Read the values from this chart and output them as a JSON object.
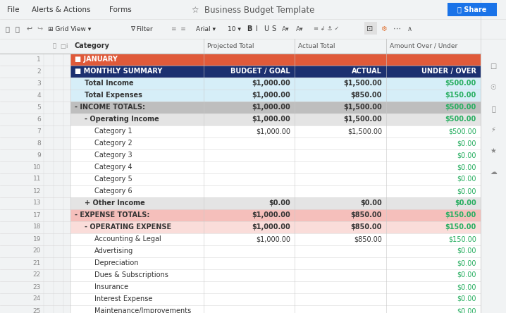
{
  "title": "Business Budget Template",
  "menu_items": [
    "File",
    "Alerts & Actions",
    "Forms"
  ],
  "rows": [
    {
      "row": 1,
      "indent": 0,
      "label": "JANUARY",
      "bold": true,
      "col1": "",
      "col2": "",
      "col3": "",
      "bg": "#E05A3A",
      "text_color": "#FFFFFF",
      "label_color": "#FFFFFF",
      "col3_color": "#27AE60",
      "prefix": "■ "
    },
    {
      "row": 2,
      "indent": 0,
      "label": "MONTHLY SUMMARY",
      "bold": true,
      "col1": "BUDGET / GOAL",
      "col2": "ACTUAL",
      "col3": "UNDER / OVER",
      "bg": "#1C3070",
      "text_color": "#FFFFFF",
      "label_color": "#FFFFFF",
      "col3_color": "#FFFFFF",
      "prefix": "■ "
    },
    {
      "row": 3,
      "indent": 1,
      "label": "Total Income",
      "bold": true,
      "col1": "$1,000.00",
      "col2": "$1,500.00",
      "col3": "$500.00",
      "bg": "#D6EEF8",
      "text_color": "#333333",
      "label_color": "#333333",
      "col3_color": "#27AE60",
      "prefix": ""
    },
    {
      "row": 4,
      "indent": 1,
      "label": "Total Expenses",
      "bold": true,
      "col1": "$1,000.00",
      "col2": "$850.00",
      "col3": "$150.00",
      "bg": "#D6EEF8",
      "text_color": "#333333",
      "label_color": "#333333",
      "col3_color": "#27AE60",
      "prefix": ""
    },
    {
      "row": 5,
      "indent": 0,
      "label": "INCOME TOTALS:",
      "bold": true,
      "col1": "$1,000.00",
      "col2": "$1,500.00",
      "col3": "$500.00",
      "bg": "#BEBEBE",
      "text_color": "#333333",
      "label_color": "#333333",
      "col3_color": "#27AE60",
      "prefix": "- "
    },
    {
      "row": 6,
      "indent": 1,
      "label": "Operating Income",
      "bold": true,
      "col1": "$1,000.00",
      "col2": "$1,500.00",
      "col3": "$500.00",
      "bg": "#E4E4E4",
      "text_color": "#333333",
      "label_color": "#333333",
      "col3_color": "#27AE60",
      "prefix": "- "
    },
    {
      "row": 7,
      "indent": 2,
      "label": "Category 1",
      "bold": false,
      "col1": "$1,000.00",
      "col2": "$1,500.00",
      "col3": "$500.00",
      "bg": "#FFFFFF",
      "text_color": "#333333",
      "label_color": "#333333",
      "col3_color": "#27AE60",
      "prefix": ""
    },
    {
      "row": 8,
      "indent": 2,
      "label": "Category 2",
      "bold": false,
      "col1": "",
      "col2": "",
      "col3": "$0.00",
      "bg": "#FFFFFF",
      "text_color": "#333333",
      "label_color": "#333333",
      "col3_color": "#27AE60",
      "prefix": ""
    },
    {
      "row": 9,
      "indent": 2,
      "label": "Category 3",
      "bold": false,
      "col1": "",
      "col2": "",
      "col3": "$0.00",
      "bg": "#FFFFFF",
      "text_color": "#333333",
      "label_color": "#333333",
      "col3_color": "#27AE60",
      "prefix": ""
    },
    {
      "row": 10,
      "indent": 2,
      "label": "Category 4",
      "bold": false,
      "col1": "",
      "col2": "",
      "col3": "$0.00",
      "bg": "#FFFFFF",
      "text_color": "#333333",
      "label_color": "#333333",
      "col3_color": "#27AE60",
      "prefix": ""
    },
    {
      "row": 11,
      "indent": 2,
      "label": "Category 5",
      "bold": false,
      "col1": "",
      "col2": "",
      "col3": "$0.00",
      "bg": "#FFFFFF",
      "text_color": "#333333",
      "label_color": "#333333",
      "col3_color": "#27AE60",
      "prefix": ""
    },
    {
      "row": 12,
      "indent": 2,
      "label": "Category 6",
      "bold": false,
      "col1": "",
      "col2": "",
      "col3": "$0.00",
      "bg": "#FFFFFF",
      "text_color": "#333333",
      "label_color": "#333333",
      "col3_color": "#27AE60",
      "prefix": ""
    },
    {
      "row": 13,
      "indent": 1,
      "label": "Other Income",
      "bold": true,
      "col1": "$0.00",
      "col2": "$0.00",
      "col3": "$0.00",
      "bg": "#E4E4E4",
      "text_color": "#333333",
      "label_color": "#333333",
      "col3_color": "#27AE60",
      "prefix": "+ "
    },
    {
      "row": 17,
      "indent": 0,
      "label": "EXPENSE TOTALS:",
      "bold": true,
      "col1": "$1,000.00",
      "col2": "$850.00",
      "col3": "$150.00",
      "bg": "#F5BFBB",
      "text_color": "#333333",
      "label_color": "#333333",
      "col3_color": "#27AE60",
      "prefix": "- "
    },
    {
      "row": 18,
      "indent": 1,
      "label": "OPERATING EXPENSE",
      "bold": true,
      "col1": "$1,000.00",
      "col2": "$850.00",
      "col3": "$150.00",
      "bg": "#FADDDA",
      "text_color": "#333333",
      "label_color": "#333333",
      "col3_color": "#27AE60",
      "prefix": "- "
    },
    {
      "row": 19,
      "indent": 2,
      "label": "Accounting & Legal",
      "bold": false,
      "col1": "$1,000.00",
      "col2": "$850.00",
      "col3": "$150.00",
      "bg": "#FFFFFF",
      "text_color": "#333333",
      "label_color": "#333333",
      "col3_color": "#27AE60",
      "prefix": ""
    },
    {
      "row": 20,
      "indent": 2,
      "label": "Advertising",
      "bold": false,
      "col1": "",
      "col2": "",
      "col3": "$0.00",
      "bg": "#FFFFFF",
      "text_color": "#333333",
      "label_color": "#333333",
      "col3_color": "#27AE60",
      "prefix": ""
    },
    {
      "row": 21,
      "indent": 2,
      "label": "Depreciation",
      "bold": false,
      "col1": "",
      "col2": "",
      "col3": "$0.00",
      "bg": "#FFFFFF",
      "text_color": "#333333",
      "label_color": "#333333",
      "col3_color": "#27AE60",
      "prefix": ""
    },
    {
      "row": 22,
      "indent": 2,
      "label": "Dues & Subscriptions",
      "bold": false,
      "col1": "",
      "col2": "",
      "col3": "$0.00",
      "bg": "#FFFFFF",
      "text_color": "#333333",
      "label_color": "#333333",
      "col3_color": "#27AE60",
      "prefix": ""
    },
    {
      "row": 23,
      "indent": 2,
      "label": "Insurance",
      "bold": false,
      "col1": "",
      "col2": "",
      "col3": "$0.00",
      "bg": "#FFFFFF",
      "text_color": "#333333",
      "label_color": "#333333",
      "col3_color": "#27AE60",
      "prefix": ""
    },
    {
      "row": 24,
      "indent": 2,
      "label": "Interest Expense",
      "bold": false,
      "col1": "",
      "col2": "",
      "col3": "$0.00",
      "bg": "#FFFFFF",
      "text_color": "#333333",
      "label_color": "#333333",
      "col3_color": "#27AE60",
      "prefix": ""
    },
    {
      "row": 25,
      "indent": 2,
      "label": "Maintenance/Improvements",
      "bold": false,
      "col1": "",
      "col2": "",
      "col3": "$0.00",
      "bg": "#FFFFFF",
      "text_color": "#333333",
      "label_color": "#333333",
      "col3_color": "#27AE60",
      "prefix": ""
    }
  ],
  "share_btn_color": "#1A73E8",
  "title_bg": "#F1F3F4",
  "toolbar_bg": "#F1F3F4",
  "colhdr_bg": "#F1F3F4",
  "sidebar_bg": "#F1F3F4",
  "left_bg": "#F1F3F4",
  "grid_color": "#CCCCCC"
}
